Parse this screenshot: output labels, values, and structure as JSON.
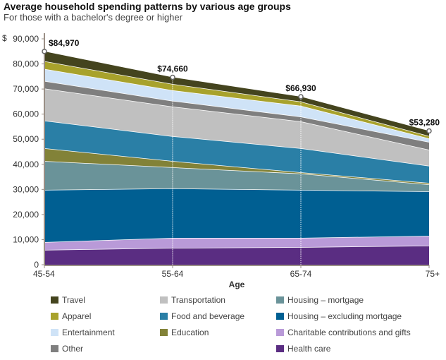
{
  "chart_data": {
    "type": "area",
    "stacked": true,
    "title": "Average household spending patterns by various age groups",
    "subtitle": "For those with a bachelor's degree or higher",
    "xlabel": "Age",
    "ylabel": "$",
    "categories": [
      "45-54",
      "55-64",
      "65-74",
      "75+"
    ],
    "ylim": [
      0,
      90000
    ],
    "yticks": [
      0,
      10000,
      20000,
      30000,
      40000,
      50000,
      60000,
      70000,
      80000,
      90000
    ],
    "ytick_labels": [
      "0",
      "10,000",
      "20,000",
      "30,000",
      "40,000",
      "50,000",
      "60,000",
      "70,000",
      "80,000",
      "90,000"
    ],
    "totals": [
      84970,
      74660,
      66930,
      53280
    ],
    "total_labels": [
      "$84,970",
      "$74,660",
      "$66,930",
      "$53,280"
    ],
    "grid": false,
    "legend_position": "bottom",
    "series": [
      {
        "name": "Health care",
        "color": "#5a2d82",
        "values": [
          5900,
          6700,
          7000,
          7600
        ]
      },
      {
        "name": "Charitable contributions and gifts",
        "color": "#b99ad8",
        "values": [
          3100,
          4000,
          3700,
          3900
        ]
      },
      {
        "name": "Housing – excluding mortgage",
        "color": "#005f92",
        "values": [
          20800,
          19700,
          19100,
          17700
        ]
      },
      {
        "name": "Housing – mortgage",
        "color": "#6a9399",
        "values": [
          11500,
          8400,
          6500,
          2800
        ]
      },
      {
        "name": "Education",
        "color": "#828238",
        "values": [
          5100,
          2500,
          500,
          600
        ]
      },
      {
        "name": "Food and beverage",
        "color": "#2a7fa6",
        "values": [
          11000,
          9900,
          9600,
          6800
        ]
      },
      {
        "name": "Transportation",
        "color": "#c0c0c0",
        "values": [
          12800,
          11800,
          10700,
          6400
        ]
      },
      {
        "name": "Other",
        "color": "#7f7f7f",
        "values": [
          3000,
          2300,
          1900,
          3100
        ]
      },
      {
        "name": "Entertainment",
        "color": "#cfe3f7",
        "values": [
          4800,
          4200,
          4300,
          1400
        ]
      },
      {
        "name": "Apparel",
        "color": "#a8a22c",
        "values": [
          3100,
          2500,
          1700,
          1000
        ]
      },
      {
        "name": "Travel",
        "color": "#44441e",
        "values": [
          3870,
          2660,
          1930,
          1980
        ]
      }
    ],
    "legend": [
      {
        "name": "Travel",
        "color": "#44441e"
      },
      {
        "name": "Apparel",
        "color": "#a8a22c"
      },
      {
        "name": "Entertainment",
        "color": "#cfe3f7"
      },
      {
        "name": "Other",
        "color": "#7f7f7f"
      },
      {
        "name": "Transportation",
        "color": "#c0c0c0"
      },
      {
        "name": "Food and beverage",
        "color": "#2a7fa6"
      },
      {
        "name": "Education",
        "color": "#828238"
      },
      {
        "name": "Housing – mortgage",
        "color": "#6a9399"
      },
      {
        "name": "Housing – excluding mortgage",
        "color": "#005f92"
      },
      {
        "name": "Charitable contributions and gifts",
        "color": "#b99ad8"
      },
      {
        "name": "Health care",
        "color": "#5a2d82"
      }
    ]
  }
}
